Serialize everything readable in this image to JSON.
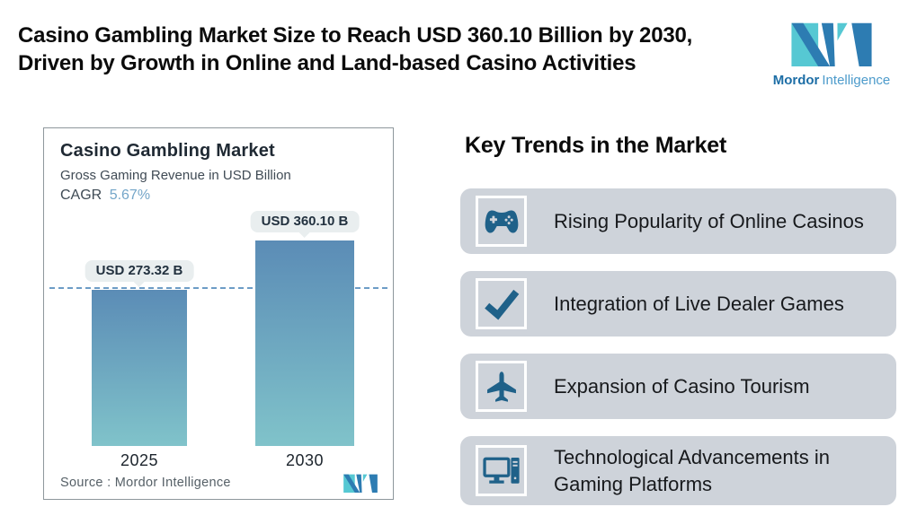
{
  "header": {
    "title_line1": "Casino Gambling Market Size to Reach USD 360.10 Billion by 2030,",
    "title_line2": "Driven by Growth in Online and Land-based Casino Activities",
    "brand": {
      "name_bold": "Mordor",
      "name_light": "Intelligence"
    }
  },
  "chart_data": {
    "type": "bar",
    "title": "Casino Gambling Market",
    "subtitle": "Gross Gaming Revenue in USD Billion",
    "cagr_label": "CAGR",
    "cagr_value": "5.67%",
    "categories": [
      "2025",
      "2030"
    ],
    "values": [
      273.32,
      360.1
    ],
    "value_labels": [
      "USD 273.32 B",
      "USD 360.10 B"
    ],
    "unit": "USD Billion",
    "reference_line": 273.32,
    "source": "Source :  Mordor Intelligence",
    "legend": false,
    "grid": false,
    "bar_gradient_top": "#5b8cb6",
    "bar_gradient_bottom": "#80c3ca"
  },
  "trends": {
    "heading": "Key Trends in the Market",
    "items": [
      {
        "icon": "gamepad-icon",
        "label": "Rising Popularity of Online Casinos"
      },
      {
        "icon": "checkmark-icon",
        "label": "Integration of Live Dealer Games"
      },
      {
        "icon": "airplane-icon",
        "label": "Expansion of Casino Tourism"
      },
      {
        "icon": "computer-icon",
        "label": "Technological Advancements in Gaming Platforms"
      }
    ]
  },
  "colors": {
    "icon_blue": "#1f6189",
    "cagr_blue": "#74a6c9",
    "trend_card_bg": "#ced3da",
    "logo_teal": "#56c8d3",
    "logo_blue": "#2d7cb2",
    "dashed_line": "#6d9cc6",
    "pill_bg": "#e9eeef"
  }
}
